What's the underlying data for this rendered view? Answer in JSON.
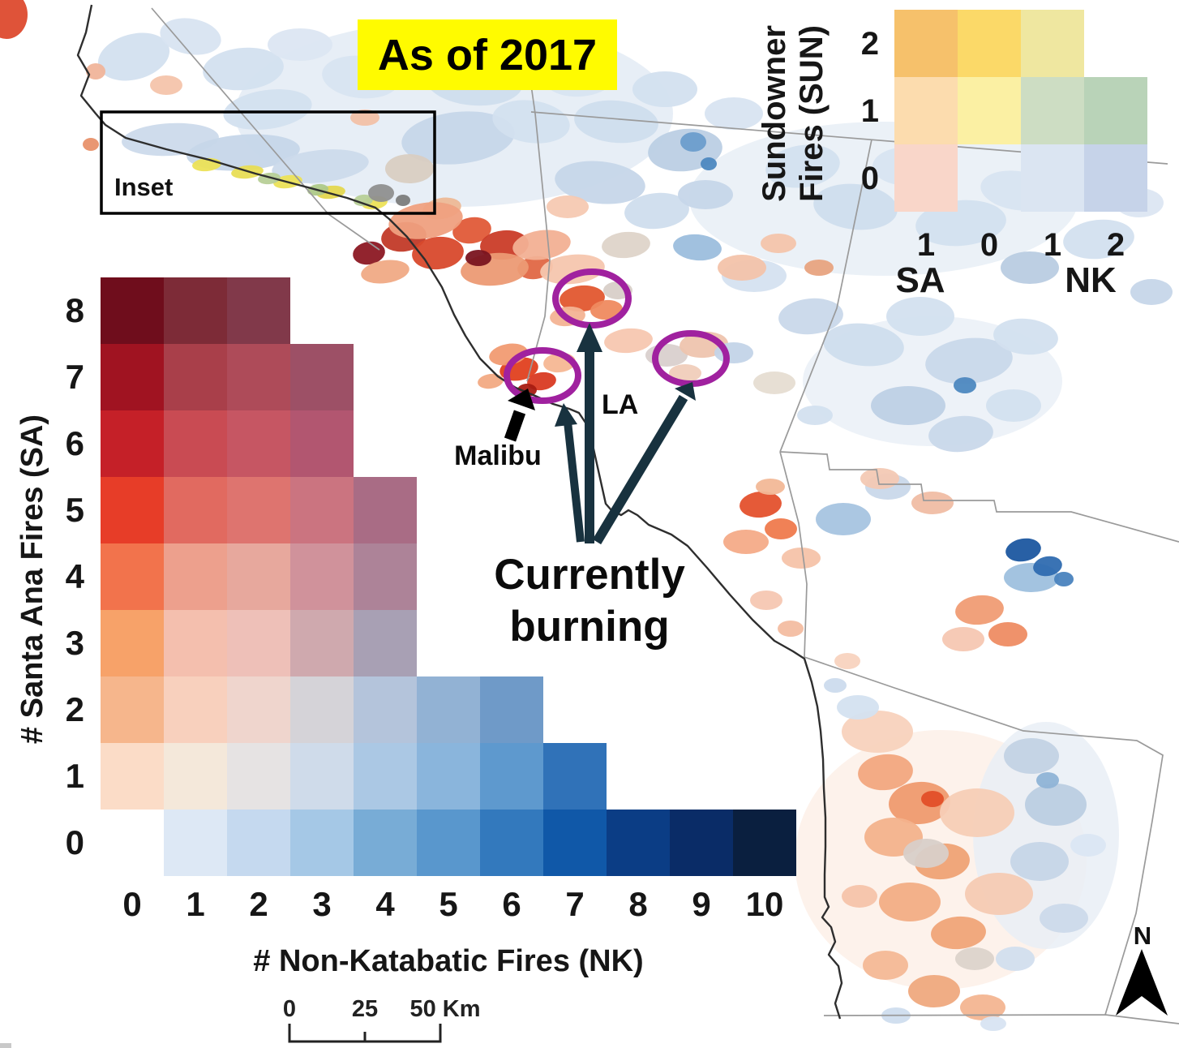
{
  "title_badge": {
    "text": "As of 2017",
    "bg": "#FFFB00"
  },
  "inset": {
    "label": "Inset"
  },
  "annotations": {
    "malibu": "Malibu",
    "la": "LA",
    "currently_line1": "Currently",
    "currently_line2": "burning"
  },
  "north": {
    "label": "N"
  },
  "scale_bar": {
    "labels": [
      "0",
      "25",
      "50 Km"
    ]
  },
  "colors": {
    "highlight_ellipse": "#A0219F",
    "arrow_dark": "#18323F",
    "arrow_black": "#000000",
    "coastline": "#2E2E2E",
    "county_line": "#9A9A9A"
  },
  "big_legend": {
    "y_label": "# Santa Ana Fires (SA)",
    "x_label": "# Non-Katabatic Fires (NK)",
    "y_ticks": [
      "8",
      "7",
      "6",
      "5",
      "4",
      "3",
      "2",
      "1",
      "0"
    ],
    "x_ticks": [
      "0",
      "1",
      "2",
      "3",
      "4",
      "5",
      "6",
      "7",
      "8",
      "9",
      "10"
    ],
    "rows": [
      {
        "sa": 8,
        "start_nk": 0,
        "colors": [
          "#6F0D1C",
          "#7D2B37",
          "#81394A"
        ]
      },
      {
        "sa": 7,
        "start_nk": 0,
        "colors": [
          "#A01321",
          "#A93F4A",
          "#AE4B59",
          "#9D5066"
        ]
      },
      {
        "sa": 6,
        "start_nk": 0,
        "colors": [
          "#C52028",
          "#C94B53",
          "#C65663",
          "#B25670"
        ]
      },
      {
        "sa": 5,
        "start_nk": 0,
        "colors": [
          "#E73D28",
          "#E16A60",
          "#DE746F",
          "#CB7480",
          "#A96C85"
        ]
      },
      {
        "sa": 4,
        "start_nk": 0,
        "colors": [
          "#F2734C",
          "#EDA08D",
          "#E7A89D",
          "#D0929B",
          "#AD8398"
        ]
      },
      {
        "sa": 3,
        "start_nk": 0,
        "colors": [
          "#F7A269",
          "#F4BFAE",
          "#EEC0B8",
          "#CFA9AE",
          "#A8A0B4"
        ]
      },
      {
        "sa": 2,
        "start_nk": 0,
        "colors": [
          "#F6B68C",
          "#F8D0BD",
          "#EFD5CD",
          "#D5D3D8",
          "#B4C4DB",
          "#92B2D4",
          "#6F9AC8"
        ]
      },
      {
        "sa": 1,
        "start_nk": 0,
        "colors": [
          "#FBDCC7",
          "#F4E8DA",
          "#E6E3E3",
          "#CFDBEA",
          "#ABC8E4",
          "#8AB5DC",
          "#5E99CE",
          "#3072B8"
        ]
      },
      {
        "sa": 0,
        "start_nk": 1,
        "colors": [
          "#DDE8F5",
          "#C5D9EF",
          "#A5C8E6",
          "#78ACD6",
          "#5997CD",
          "#3379BD",
          "#1058A8",
          "#0B3D85",
          "#0A2C67",
          "#0A1F3F"
        ]
      }
    ]
  },
  "sun_legend": {
    "title_line1": "Sundowner",
    "title_line2": "Fires (SUN)",
    "y_ticks": [
      "2",
      "1",
      "0"
    ],
    "x_ticks": [
      "1",
      "0",
      "1",
      "2"
    ],
    "group_labels": [
      "SA",
      "NK"
    ],
    "rows": [
      {
        "sun": 2,
        "cells": [
          {
            "col": 0,
            "color": "#F6C16B"
          },
          {
            "col": 1,
            "color": "#FBD968"
          },
          {
            "col": 2,
            "color": "#EFE7A0"
          }
        ]
      },
      {
        "sun": 1,
        "cells": [
          {
            "col": 0,
            "color": "#FCDCAE"
          },
          {
            "col": 1,
            "color": "#FBF0A3"
          },
          {
            "col": 2,
            "color": "#CDDDC3"
          },
          {
            "col": 3,
            "color": "#B9D3B8"
          }
        ]
      },
      {
        "sun": 0,
        "cells": [
          {
            "col": 0,
            "color": "#F9D6C9"
          },
          {
            "col": 2,
            "color": "#DBE5F2"
          },
          {
            "col": 3,
            "color": "#C6D3E9"
          }
        ]
      }
    ]
  }
}
